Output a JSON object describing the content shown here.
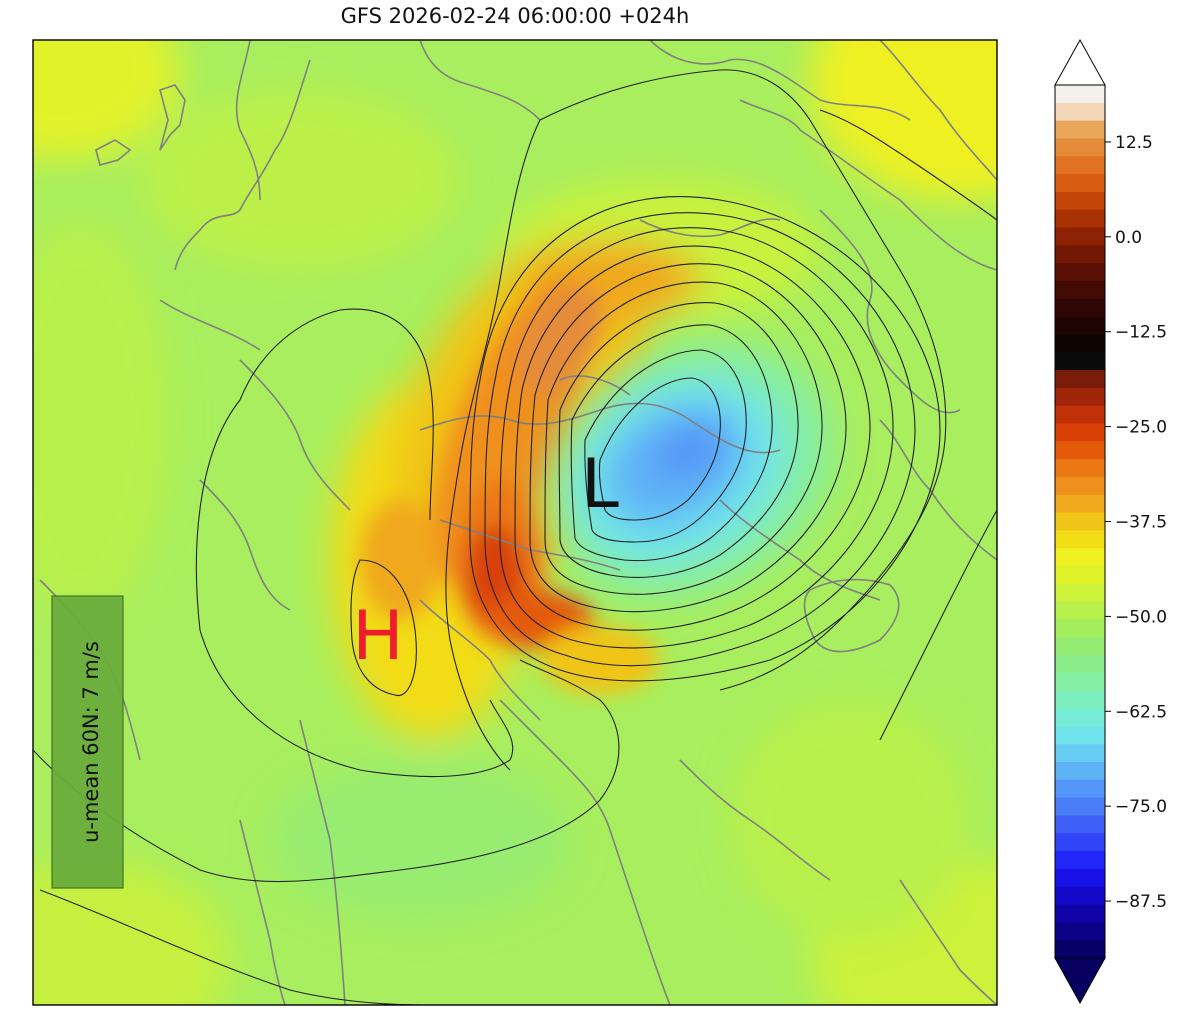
{
  "title": "GFS 2026-02-24 06:00:00 +024h",
  "map": {
    "high_marker": "H",
    "low_marker": "L",
    "u_mean_box": "u-mean 60N: 7 m/s",
    "high_color": "#ee1c2e",
    "low_color": "#111111",
    "u_mean_box_color": "#6aad3c"
  },
  "colorbar": {
    "tick_labels": [
      "12.5",
      "0.0",
      "−12.5",
      "−25.0",
      "−37.5",
      "−50.0",
      "−62.5",
      "−75.0",
      "−87.5"
    ],
    "tick_values": [
      12.5,
      0.0,
      -12.5,
      -25.0,
      -37.5,
      -50.0,
      -62.5,
      -75.0,
      -87.5
    ],
    "range": [
      -95,
      20
    ],
    "extend": "both",
    "colors_top_to_bottom": [
      "#f4f0ec",
      "#f2d6b6",
      "#e9a75a",
      "#e58c3b",
      "#e07222",
      "#d85c10",
      "#c44408",
      "#a83204",
      "#8e2204",
      "#721804",
      "#5a1004",
      "#440a04",
      "#300604",
      "#1e0402",
      "#0e0402",
      "#0a0a0a",
      "#7a1c0a",
      "#a02408",
      "#c23008",
      "#d84008",
      "#e45a0a",
      "#ec7814",
      "#f0901c",
      "#f0a81c",
      "#f0c418",
      "#f2dc16",
      "#eef020",
      "#e0f228",
      "#ccf23a",
      "#b8f04c",
      "#a4ee5e",
      "#94ec72",
      "#8aec88",
      "#84eea2",
      "#7ceebc",
      "#76ecd6",
      "#70e4ec",
      "#68ccf4",
      "#5eb2f6",
      "#5496f8",
      "#4a7cf8",
      "#3e60f8",
      "#3044f8",
      "#2228f8",
      "#1812e8",
      "#1408c8",
      "#1004a8",
      "#0c0288",
      "#080068"
    ]
  }
}
